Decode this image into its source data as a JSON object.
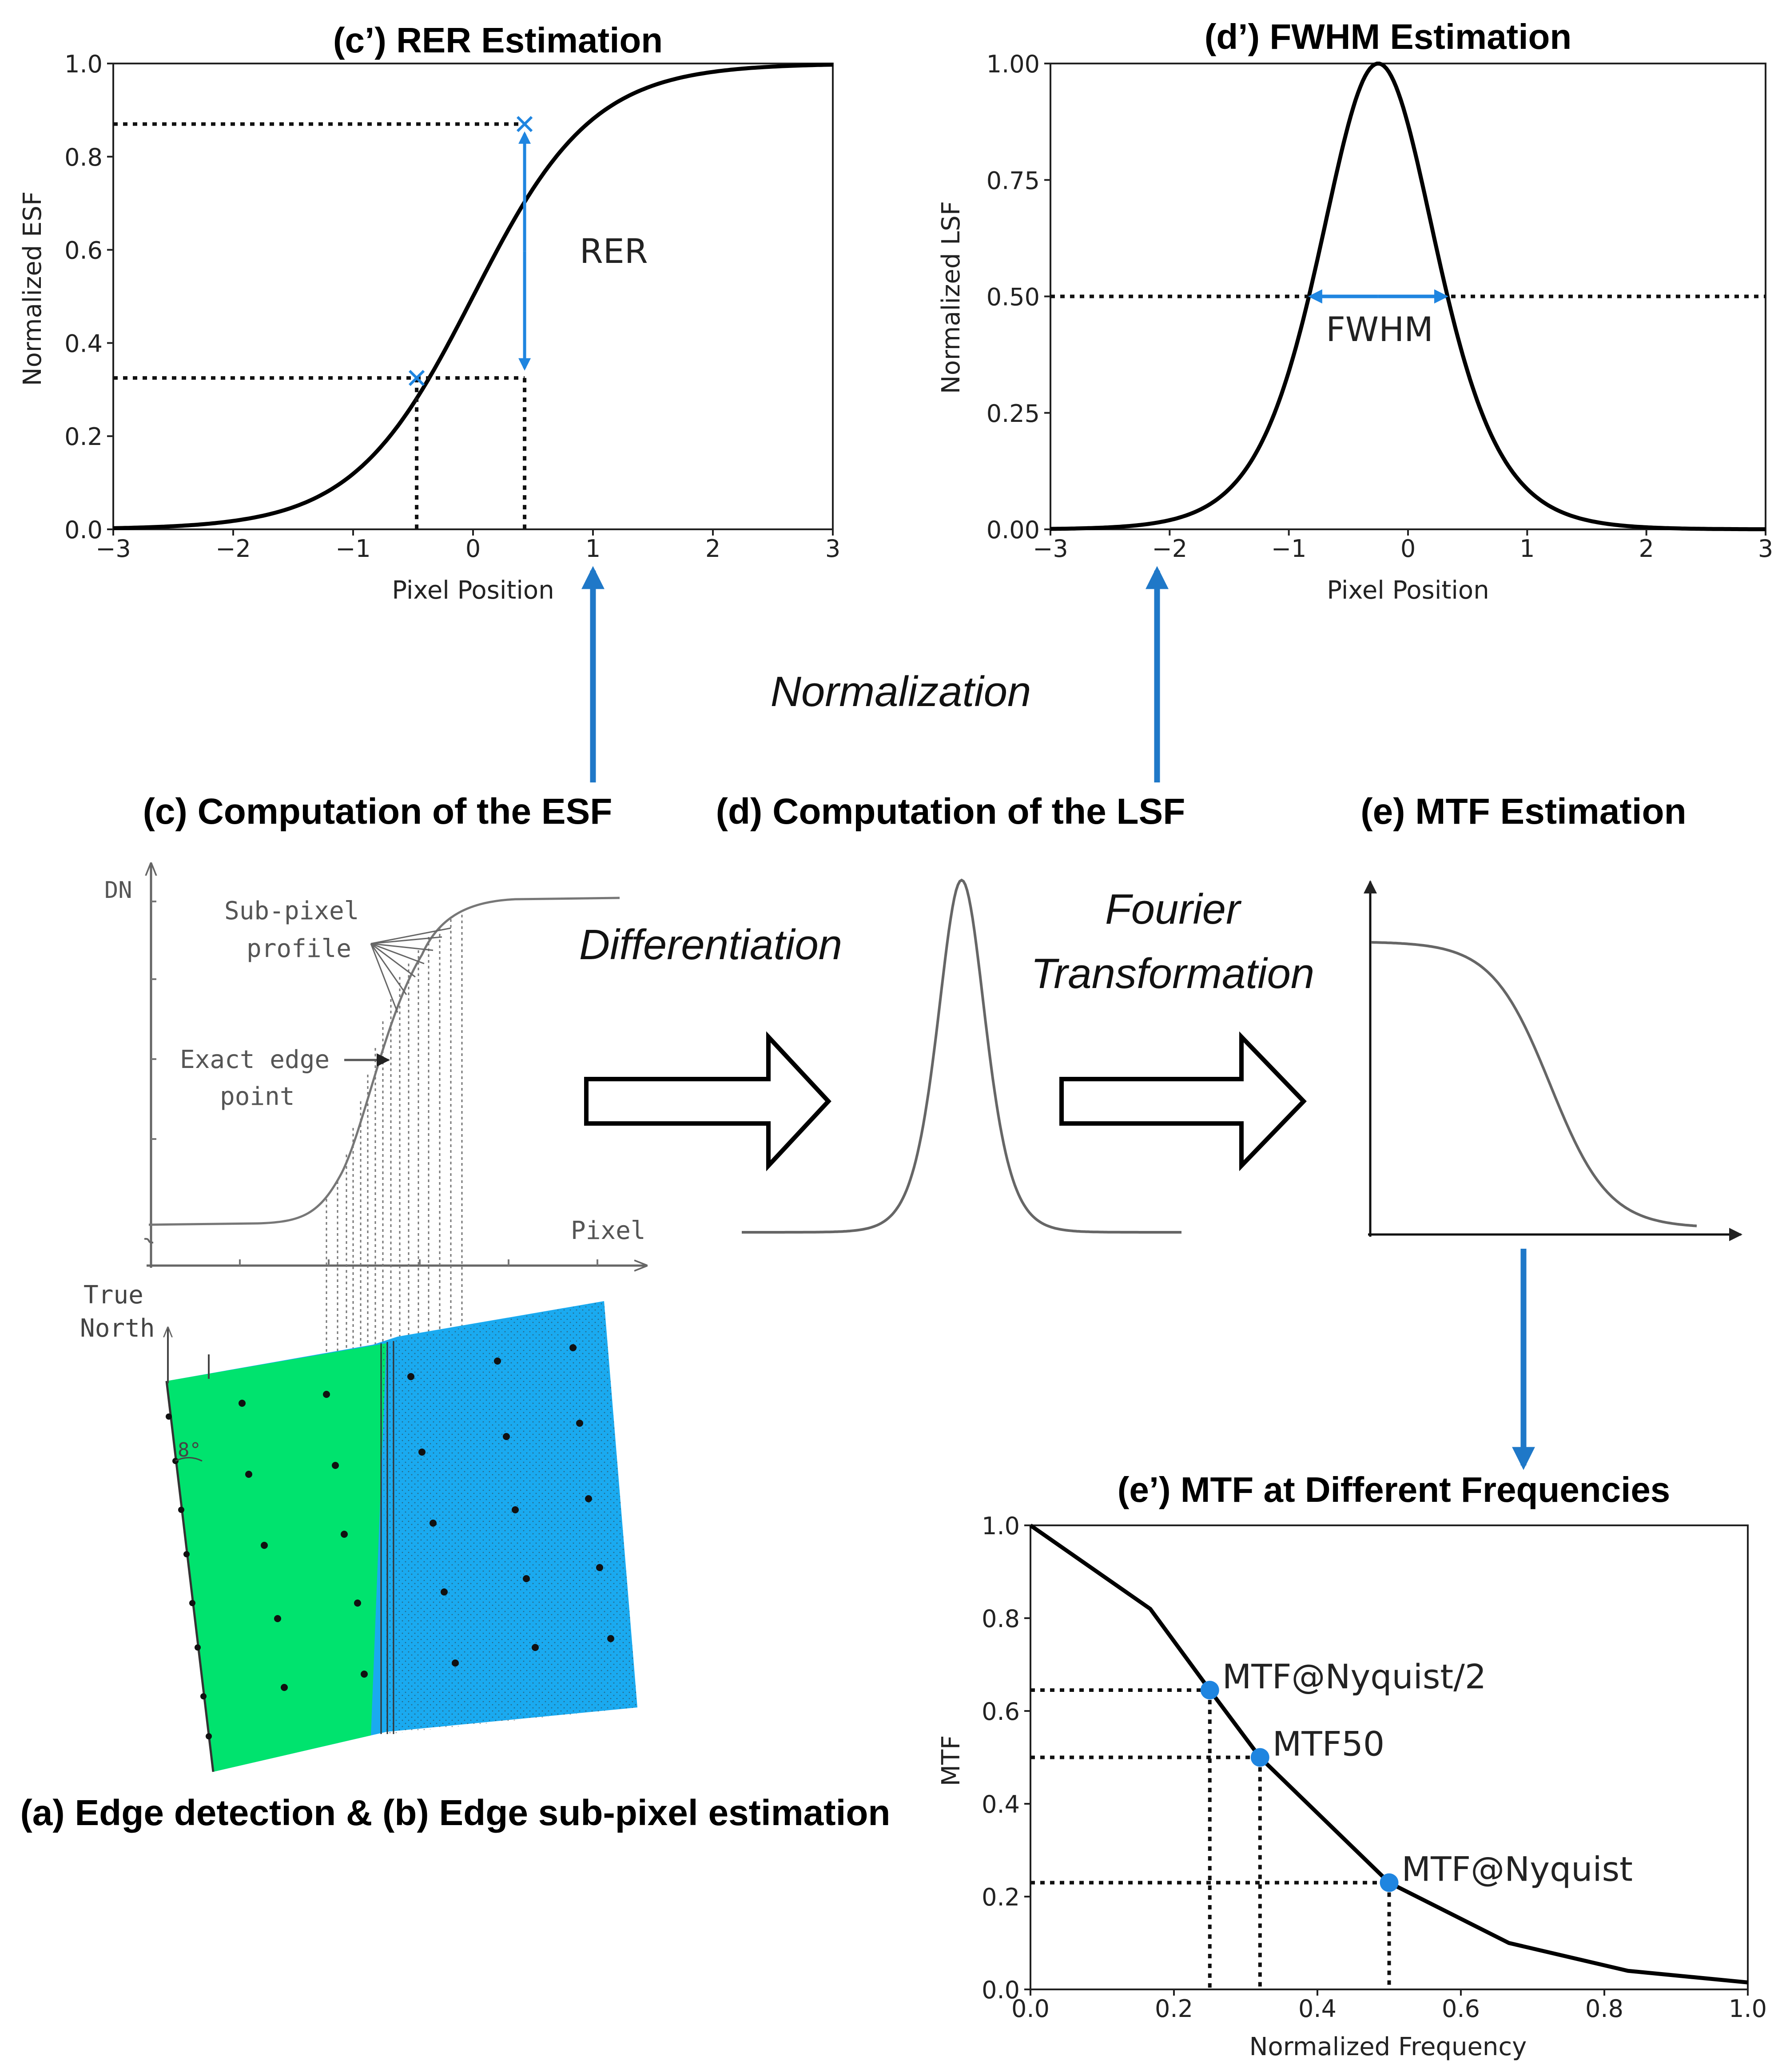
{
  "colors": {
    "accent": "#1f85e0",
    "arrow_blue": "#1f78c8",
    "green": "#00e36e",
    "blue_field": "#1aaaf0",
    "curve": "#000000",
    "sketch": "#7a7a7a"
  },
  "rer_panel": {
    "title": "(c’) RER Estimation",
    "label": "RER",
    "chart_data": {
      "type": "line",
      "title": "(c’) RER Estimation",
      "xlabel": "Pixel Position",
      "ylabel": "Normalized ESF",
      "xlim": [
        -3,
        3
      ],
      "ylim": [
        0,
        1
      ],
      "xticks": [
        "−3",
        "−2",
        "−1",
        "0",
        "1",
        "2",
        "3"
      ],
      "yticks": [
        "0.0",
        "0.2",
        "0.4",
        "0.6",
        "0.8",
        "1.0"
      ],
      "curve": "logistic",
      "center": 0,
      "scale": 0.5,
      "markers": [
        {
          "x": -0.47,
          "y": 0.325
        },
        {
          "x": 0.43,
          "y": 0.87
        }
      ]
    }
  },
  "fwhm_panel": {
    "title": "(d’) FWHM Estimation",
    "label": "FWHM",
    "chart_data": {
      "type": "line",
      "title": "(d’) FWHM Estimation",
      "xlabel": "Pixel Position",
      "ylabel": "Normalized LSF",
      "xlim": [
        -3,
        3
      ],
      "ylim": [
        0,
        1
      ],
      "xticks": [
        "−3",
        "−2",
        "−1",
        "0",
        "1",
        "2",
        "3"
      ],
      "yticks": [
        "0.00",
        "0.25",
        "0.50",
        "0.75",
        "1.00"
      ],
      "curve": "logistic-derivative",
      "center": -0.25,
      "scale": 0.33,
      "half_max": 0.5,
      "fwhm_range": [
        -0.83,
        0.33
      ]
    }
  },
  "mtf_panel": {
    "title": "(e’) MTF at Different Frequencies",
    "chart_data": {
      "type": "line",
      "title": "(e’) MTF at Different Frequencies",
      "xlabel": "Normalized Frequency",
      "ylabel": "MTF",
      "xlim": [
        0,
        1
      ],
      "ylim": [
        0,
        1
      ],
      "xticks": [
        "0.0",
        "0.2",
        "0.4",
        "0.6",
        "0.8",
        "1.0"
      ],
      "yticks": [
        "0.0",
        "0.2",
        "0.4",
        "0.6",
        "0.8",
        "1.0"
      ],
      "x": [
        0,
        0.167,
        0.25,
        0.32,
        0.5,
        0.667,
        0.833,
        1.0
      ],
      "y": [
        1.0,
        0.82,
        0.645,
        0.5,
        0.23,
        0.1,
        0.04,
        0.015
      ],
      "points": [
        {
          "label": "MTF@Nyquist/2",
          "x": 0.25,
          "y": 0.645
        },
        {
          "label": "MTF50",
          "x": 0.32,
          "y": 0.5
        },
        {
          "label": "MTF@Nyquist",
          "x": 0.5,
          "y": 0.23
        }
      ]
    }
  },
  "labels": {
    "normalization": "Normalization",
    "differentiation": "Differentiation",
    "fourier_1": "Fourier",
    "fourier_2": "Transformation",
    "step_c": "(c) Computation of the ESF",
    "step_d": "(d) Computation of the LSF",
    "step_e": "(e) MTF Estimation",
    "step_ab": "(a) Edge detection & (b) Edge sub-pixel estimation"
  },
  "esf_sketch": {
    "dn": "DN",
    "subpixel_1": "Sub-pixel",
    "subpixel_2": "profile",
    "exact_1": "Exact edge",
    "exact_2": "point",
    "pixel": "Pixel",
    "true_1": "True",
    "true_2": "North",
    "angle": "8°"
  }
}
